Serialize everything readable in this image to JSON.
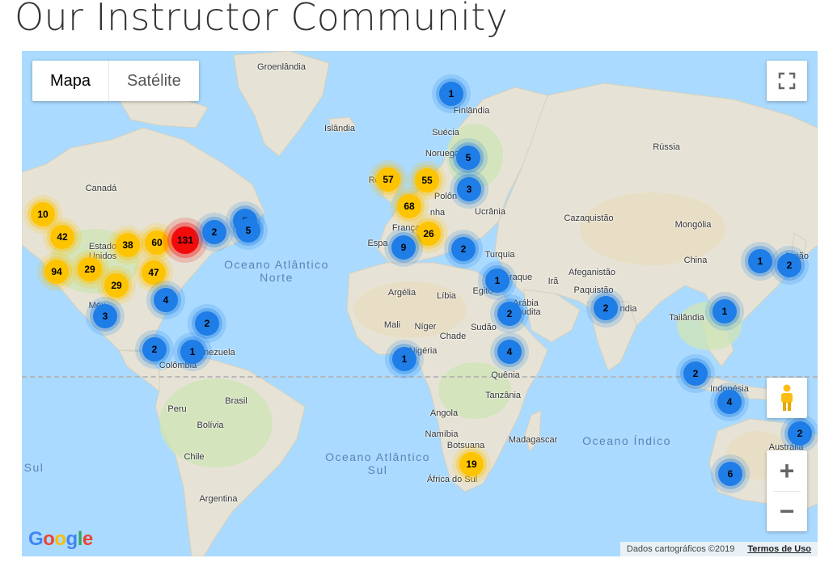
{
  "page": {
    "title": "Our Instructor Community"
  },
  "map_type": {
    "map_label": "Mapa",
    "satellite_label": "Satélite",
    "selected": "Mapa"
  },
  "controls": {
    "fullscreen_icon": "fullscreen-icon",
    "pegman_icon": "street-view-pegman-icon",
    "zoom_in": "+",
    "zoom_out": "−"
  },
  "footer": {
    "logo": "Google",
    "attribution": "Dados cartográficos ©2019",
    "terms": "Termos de Uso"
  },
  "colors": {
    "blue": "#1e7de6",
    "yellow": "#ffc400",
    "red": "#f20b0b",
    "water": "#aadaff"
  },
  "labels": [
    {
      "text": "Groenlândia",
      "type": "country"
    },
    {
      "text": "Islândia",
      "type": "country"
    },
    {
      "text": "Finlândia",
      "type": "country"
    },
    {
      "text": "Suécia",
      "type": "country"
    },
    {
      "text": "Noruega",
      "type": "country"
    },
    {
      "text": "Rússia",
      "type": "country"
    },
    {
      "text": "Canadá",
      "type": "country"
    },
    {
      "text": "Rei",
      "type": "country"
    },
    {
      "text": "Polôn",
      "type": "country"
    },
    {
      "text": "nha",
      "type": "country"
    },
    {
      "text": "Ucrânia",
      "type": "country"
    },
    {
      "text": "Cazaquistão",
      "type": "country"
    },
    {
      "text": "Mongólia",
      "type": "country"
    },
    {
      "text": "França",
      "type": "country"
    },
    {
      "text": "Espa",
      "type": "country"
    },
    {
      "text": "Turquia",
      "type": "country"
    },
    {
      "text": "China",
      "type": "country"
    },
    {
      "text": "Japão",
      "type": "country"
    },
    {
      "text": "Estado",
      "type": "country"
    },
    {
      "text": "Unidos",
      "type": "country"
    },
    {
      "text": "Afeganistão",
      "type": "country"
    },
    {
      "text": "Paquistão",
      "type": "country"
    },
    {
      "text": "Irã",
      "type": "country"
    },
    {
      "text": "raque",
      "type": "country"
    },
    {
      "text": "Egito",
      "type": "country"
    },
    {
      "text": "Argélia",
      "type": "country"
    },
    {
      "text": "Líbia",
      "type": "country"
    },
    {
      "text": "Arábia",
      "type": "country"
    },
    {
      "text": "Saudita",
      "type": "country"
    },
    {
      "text": "ndia",
      "type": "country"
    },
    {
      "text": "Tailândia",
      "type": "country"
    },
    {
      "text": "Méx",
      "type": "country"
    },
    {
      "text": "Mali",
      "type": "country"
    },
    {
      "text": "Níger",
      "type": "country"
    },
    {
      "text": "Chade",
      "type": "country"
    },
    {
      "text": "Sudão",
      "type": "country"
    },
    {
      "text": "Nigéria",
      "type": "country"
    },
    {
      "text": "Venezuela",
      "type": "country"
    },
    {
      "text": "Colômbia",
      "type": "country"
    },
    {
      "text": "Quênia",
      "type": "country"
    },
    {
      "text": "Tanzânia",
      "type": "country"
    },
    {
      "text": "Indonésia",
      "type": "country"
    },
    {
      "text": "Brasil",
      "type": "country"
    },
    {
      "text": "Peru",
      "type": "country"
    },
    {
      "text": "Bolívia",
      "type": "country"
    },
    {
      "text": "Angola",
      "type": "country"
    },
    {
      "text": "Namíbia",
      "type": "country"
    },
    {
      "text": "Botsuana",
      "type": "country"
    },
    {
      "text": "Madagascar",
      "type": "country"
    },
    {
      "text": "Chile",
      "type": "country"
    },
    {
      "text": "Argentina",
      "type": "country"
    },
    {
      "text": "África do Sul",
      "type": "country"
    },
    {
      "text": "Austrália",
      "type": "country"
    },
    {
      "text": "Oceano Atlântico Norte",
      "type": "ocean"
    },
    {
      "text": "Oceano Atlântico Sul",
      "type": "ocean"
    },
    {
      "text": "Oceano Índico",
      "type": "ocean"
    },
    {
      "text": "Sul",
      "type": "ocean"
    }
  ],
  "clusters": [
    {
      "count": "1",
      "color": "blue"
    },
    {
      "count": "5",
      "color": "blue"
    },
    {
      "count": "57",
      "color": "yellow"
    },
    {
      "count": "55",
      "color": "yellow"
    },
    {
      "count": "3",
      "color": "blue"
    },
    {
      "count": "5",
      "color": "blue"
    },
    {
      "count": "68",
      "color": "yellow"
    },
    {
      "count": "10",
      "color": "yellow"
    },
    {
      "count": "42",
      "color": "yellow"
    },
    {
      "count": "38",
      "color": "yellow"
    },
    {
      "count": "60",
      "color": "yellow"
    },
    {
      "count": "131",
      "color": "red"
    },
    {
      "count": "2",
      "color": "blue"
    },
    {
      "count": "5",
      "color": "blue"
    },
    {
      "count": "26",
      "color": "yellow"
    },
    {
      "count": "9",
      "color": "blue"
    },
    {
      "count": "2",
      "color": "blue"
    },
    {
      "count": "94",
      "color": "yellow"
    },
    {
      "count": "29",
      "color": "yellow"
    },
    {
      "count": "47",
      "color": "yellow"
    },
    {
      "count": "29",
      "color": "yellow"
    },
    {
      "count": "1",
      "color": "blue"
    },
    {
      "count": "1",
      "color": "blue"
    },
    {
      "count": "2",
      "color": "blue"
    },
    {
      "count": "4",
      "color": "blue"
    },
    {
      "count": "3",
      "color": "blue"
    },
    {
      "count": "2",
      "color": "blue"
    },
    {
      "count": "2",
      "color": "blue"
    },
    {
      "count": "1",
      "color": "blue"
    },
    {
      "count": "1",
      "color": "blue"
    },
    {
      "count": "4",
      "color": "blue"
    },
    {
      "count": "1",
      "color": "blue"
    },
    {
      "count": "2",
      "color": "blue"
    },
    {
      "count": "2",
      "color": "blue"
    },
    {
      "count": "2",
      "color": "blue"
    },
    {
      "count": "4",
      "color": "blue"
    },
    {
      "count": "19",
      "color": "yellow"
    },
    {
      "count": "6",
      "color": "blue"
    },
    {
      "count": "2",
      "color": "blue"
    }
  ]
}
